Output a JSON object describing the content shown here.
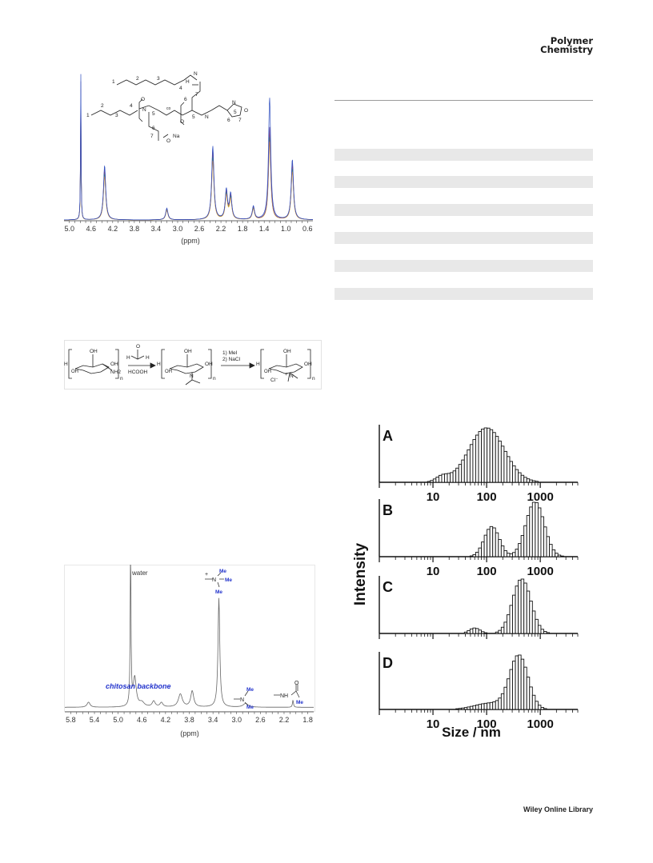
{
  "header": {
    "journal_line1": "Polymer",
    "journal_line2": "Chemistry"
  },
  "footer": {
    "publisher": "Wiley Online Library"
  },
  "nmr_top": {
    "xlabel": "(ppm)",
    "ticks": [
      "5.0",
      "4.6",
      "4.2",
      "3.8",
      "3.4",
      "3.0",
      "2.6",
      "2.2",
      "1.8",
      "1.4",
      "1.0",
      "0.6"
    ],
    "peak_labels": [
      "1",
      "2",
      "3",
      "4",
      "5",
      "6",
      "7"
    ],
    "structure_numbers": [
      "1",
      "2",
      "3",
      "4",
      "5",
      "6",
      "7"
    ],
    "structure_labels": [
      "N",
      "H",
      "O",
      "Na",
      "co"
    ]
  },
  "scheme": {
    "reagent1_top": "O",
    "reagent1_h": "H",
    "reagent1_bottom": "HCOOH",
    "reagent2_line1": "1) MeI",
    "reagent2_line2": "2) NaCl",
    "oh": "OH",
    "nh2": "NH2",
    "n": "n",
    "h": "H",
    "n_atom": "N",
    "cl": "Cl⁻",
    "plus": "+"
  },
  "nmr_bottom": {
    "xlabel": "(ppm)",
    "ticks": [
      "5.8",
      "5.4",
      "5.0",
      "4.6",
      "4.2",
      "3.8",
      "3.4",
      "3.0",
      "2.6",
      "2.2",
      "1.8"
    ],
    "water_label": "water",
    "backbone_label": "chitosan backbone",
    "me": "Me",
    "nh": "NH",
    "n_atom": "N",
    "o_atom": "O"
  },
  "dls": {
    "ylabel": "Intensity",
    "xlabel": "Size / nm",
    "panels": [
      "A",
      "B",
      "C",
      "D"
    ],
    "ticks": [
      "10",
      "100",
      "1000"
    ]
  },
  "chart_data": [
    {
      "type": "line",
      "id": "nmr-top",
      "xlabel": "(ppm)",
      "xlim": [
        5.1,
        0.5
      ],
      "x_reversed": true,
      "peaks": [
        {
          "label": "5",
          "ppm": 4.35,
          "height": 0.37
        },
        {
          "label": "4",
          "ppm": 3.2,
          "height": 0.08
        },
        {
          "label": "7",
          "ppm": 2.35,
          "height": 0.5
        },
        {
          "label": "6",
          "ppm": 2.1,
          "height": 0.2
        },
        {
          "label": "3",
          "ppm": 1.6,
          "height": 0.09
        },
        {
          "label": "2",
          "ppm": 1.3,
          "height": 0.83
        },
        {
          "label": "1",
          "ppm": 0.88,
          "height": 0.41
        }
      ]
    },
    {
      "type": "line",
      "id": "nmr-bottom",
      "xlabel": "(ppm)",
      "xlim": [
        5.9,
        1.7
      ],
      "x_reversed": true,
      "peaks": [
        {
          "label": "water",
          "ppm": 4.79,
          "height": 1.0
        },
        {
          "label": "N-Me3",
          "ppm": 3.3,
          "height": 0.75
        },
        {
          "label": "N-Me2",
          "ppm": 2.85,
          "height": 0.03
        },
        {
          "label": "NHAc",
          "ppm": 2.05,
          "height": 0.05
        }
      ]
    },
    {
      "type": "bar",
      "id": "dls",
      "xlabel": "Size / nm",
      "ylabel": "Intensity",
      "x_scale": "log",
      "xlim": [
        1,
        5000
      ],
      "series": [
        {
          "name": "A",
          "components": [
            {
              "center": 100,
              "width": 0.33,
              "amp": 1.0
            },
            {
              "center": 15,
              "width": 0.12,
              "amp": 0.1
            }
          ]
        },
        {
          "name": "B",
          "components": [
            {
              "center": 800,
              "width": 0.17,
              "amp": 1.0
            },
            {
              "center": 125,
              "width": 0.14,
              "amp": 0.55
            }
          ]
        },
        {
          "name": "C",
          "components": [
            {
              "center": 450,
              "width": 0.17,
              "amp": 1.0
            },
            {
              "center": 60,
              "width": 0.1,
              "amp": 0.1
            }
          ]
        },
        {
          "name": "D",
          "components": [
            {
              "center": 400,
              "width": 0.17,
              "amp": 1.0
            },
            {
              "center": 120,
              "width": 0.3,
              "amp": 0.12
            }
          ]
        }
      ]
    }
  ]
}
